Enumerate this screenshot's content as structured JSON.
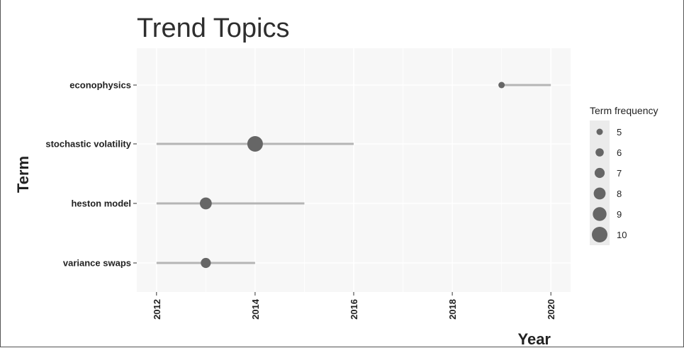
{
  "chart_data": {
    "type": "scatter",
    "title": "Trend Topics",
    "xlabel": "Year",
    "ylabel": "Term",
    "xlim": [
      2011.6,
      2020.4
    ],
    "x_ticks": [
      2012,
      2014,
      2016,
      2018,
      2020
    ],
    "grid": true,
    "legend": {
      "title": "Term frequency",
      "placement": "right",
      "values": [
        5,
        6,
        7,
        8,
        9,
        10
      ]
    },
    "terms": [
      {
        "term": "econophysics",
        "year_start": 2019,
        "year_median": 2019,
        "year_end": 2020,
        "frequency": 5
      },
      {
        "term": "stochastic volatility",
        "year_start": 2012,
        "year_median": 2014,
        "year_end": 2016,
        "frequency": 10
      },
      {
        "term": "heston model",
        "year_start": 2012,
        "year_median": 2013,
        "year_end": 2015,
        "frequency": 8
      },
      {
        "term": "variance swaps",
        "year_start": 2012,
        "year_median": 2013,
        "year_end": 2014,
        "frequency": 7
      }
    ]
  },
  "colors": {
    "panel": "#f7f7f7",
    "grid_major": "#ffffff",
    "segment": "#b5b5b5",
    "point": "#666666",
    "legend_key": "#ebebeb"
  }
}
